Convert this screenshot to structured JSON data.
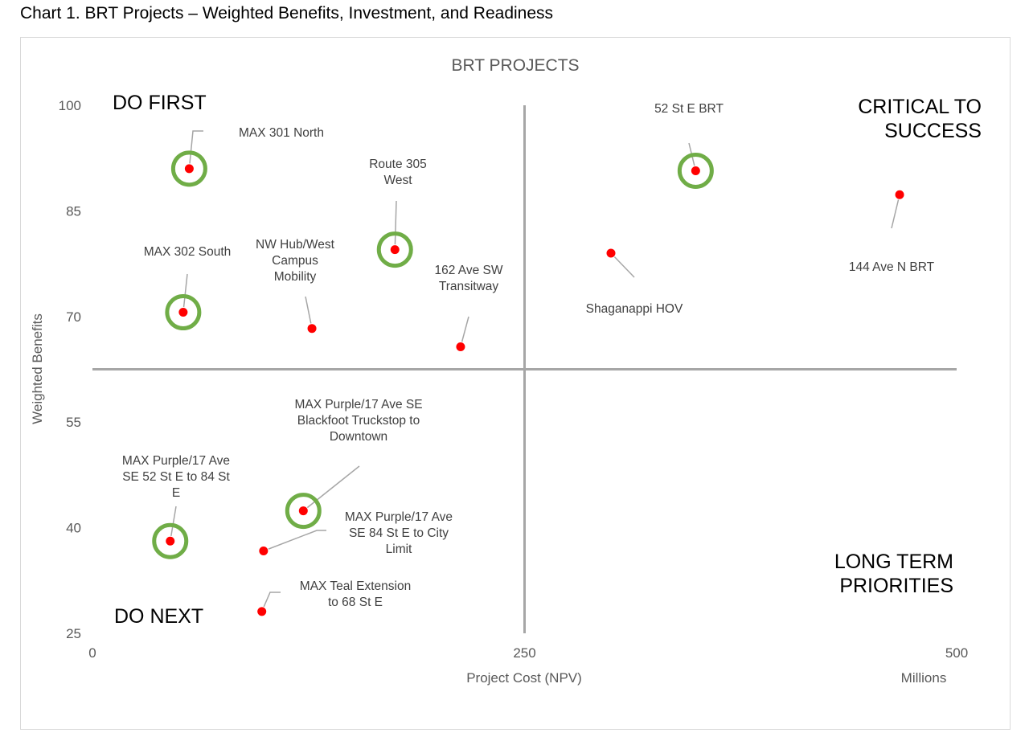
{
  "caption": "Chart 1. BRT Projects – Weighted Benefits, Investment, and Readiness",
  "chart_data": {
    "type": "scatter",
    "title": "BRT PROJECTS",
    "xlabel": "Project Cost (NPV)",
    "xunit": "Millions",
    "ylabel": "Weighted Benefits",
    "xlim": [
      0,
      500
    ],
    "ylim": [
      25,
      100
    ],
    "xticks": [
      0,
      250,
      500
    ],
    "yticks": [
      25,
      40,
      55,
      70,
      85,
      100
    ],
    "grid": false,
    "quadrant_divider": {
      "x": 250,
      "y": 62.5
    },
    "quadrants": [
      {
        "label": [
          "DO FIRST"
        ]
      },
      {
        "label": [
          "CRITICAL TO",
          "SUCCESS"
        ]
      },
      {
        "label": [
          "DO NEXT"
        ]
      },
      {
        "label": [
          "LONG TERM",
          "PRIORITIES"
        ]
      }
    ],
    "colors": {
      "point": "#ff0000",
      "ring": "#70ad47",
      "axis": "#a6a6a6",
      "leader": "#a6a6a6"
    },
    "points": [
      {
        "name": "MAX 301 North",
        "label": [
          "MAX 301 North"
        ],
        "x": 56,
        "y": 91,
        "highlighted": true
      },
      {
        "name": "Route 305 West",
        "label": [
          "Route 305",
          "West"
        ],
        "x": 175,
        "y": 79.5,
        "highlighted": true
      },
      {
        "name": "52 St E BRT",
        "label": [
          "52 St E BRT"
        ],
        "x": 349,
        "y": 90.7,
        "highlighted": true
      },
      {
        "name": "144 Ave N BRT",
        "label": [
          "144 Ave N BRT"
        ],
        "x": 467,
        "y": 87.3,
        "highlighted": false
      },
      {
        "name": "MAX 302 South",
        "label": [
          "MAX 302 South"
        ],
        "x": 52.5,
        "y": 70.6,
        "highlighted": true
      },
      {
        "name": "NW Hub/West Campus Mobility",
        "label": [
          "NW Hub/West",
          "Campus",
          "Mobility"
        ],
        "x": 127,
        "y": 68.3,
        "highlighted": false
      },
      {
        "name": "162 Ave SW Transitway",
        "label": [
          "162 Ave SW",
          "Transitway"
        ],
        "x": 213,
        "y": 65.7,
        "highlighted": false
      },
      {
        "name": "Shaganappi HOV",
        "label": [
          "Shaganappi HOV"
        ],
        "x": 300,
        "y": 79,
        "highlighted": false
      },
      {
        "name": "MAX Purple/17 Ave SE Blackfoot Truckstop to Downtown",
        "label": [
          "MAX Purple/17 Ave SE",
          "Blackfoot Truckstop to",
          "Downtown"
        ],
        "x": 122,
        "y": 42.4,
        "highlighted": true
      },
      {
        "name": "MAX Purple/17 Ave SE 52 St E to 84 St E",
        "label": [
          "MAX Purple/17 Ave",
          "SE 52 St E to 84 St",
          "E"
        ],
        "x": 45,
        "y": 38.1,
        "highlighted": true
      },
      {
        "name": "MAX Purple/17 Ave SE 84 St E to City Limit",
        "label": [
          "MAX Purple/17 Ave",
          "SE 84 St E to City",
          "Limit"
        ],
        "x": 99,
        "y": 36.7,
        "highlighted": false
      },
      {
        "name": "MAX Teal Extension to 68 St E",
        "label": [
          "MAX Teal Extension",
          "to 68 St E"
        ],
        "x": 98,
        "y": 28.1,
        "highlighted": false
      }
    ]
  }
}
